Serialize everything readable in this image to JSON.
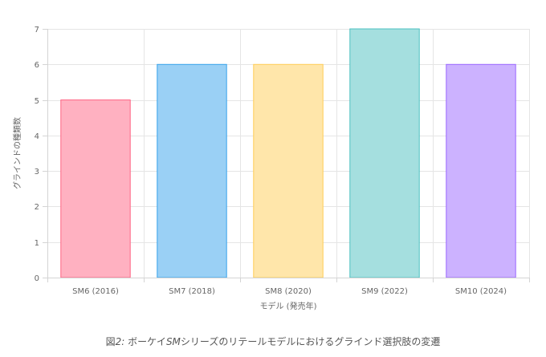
{
  "chart_data": {
    "type": "bar",
    "categories": [
      "SM6 (2016)",
      "SM7 (2018)",
      "SM8 (2020)",
      "SM9 (2022)",
      "SM10 (2024)"
    ],
    "values": [
      5,
      6,
      6,
      7,
      6
    ],
    "xlabel": "モデル (発売年)",
    "ylabel": "グラインドの種類数",
    "ylim": [
      0,
      7
    ],
    "yticks": [
      "0",
      "1",
      "2",
      "3",
      "4",
      "5",
      "6",
      "7"
    ],
    "grid": true,
    "legend": "none",
    "colors": [
      {
        "fill": "#ffb1c1",
        "stroke": "#ff6384"
      },
      {
        "fill": "#9ad0f5",
        "stroke": "#36a2eb"
      },
      {
        "fill": "#ffe6aa",
        "stroke": "#ffcd56"
      },
      {
        "fill": "#a5dfdf",
        "stroke": "#4bc0c0"
      },
      {
        "fill": "#ccb2ff",
        "stroke": "#9966ff"
      }
    ]
  },
  "caption": {
    "prefix": "図",
    "number": "2:",
    "text_a": " ボーケイ",
    "brand": "SM",
    "text_b": "シリーズのリテールモデルにおけるグラインド選択肢の変遷"
  }
}
